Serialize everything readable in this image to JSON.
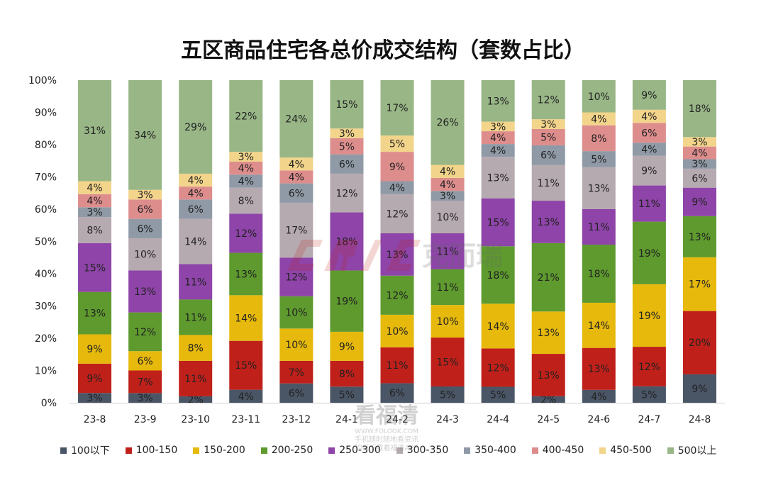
{
  "chart_data": {
    "type": "bar",
    "stacked": "percent",
    "title": "五区商品住宅各总价成交结构（套数占比）",
    "categories": [
      "23-8",
      "23-9",
      "23-10",
      "23-11",
      "23-12",
      "24-1",
      "24-2",
      "24-3",
      "24-4",
      "24-5",
      "24-6",
      "24-7",
      "24-8"
    ],
    "yticks": [
      "0%",
      "10%",
      "20%",
      "30%",
      "40%",
      "50%",
      "60%",
      "70%",
      "80%",
      "90%",
      "100%"
    ],
    "ylim": [
      0,
      100
    ],
    "legend_position": "bottom",
    "grid": false,
    "series": [
      {
        "name": "100以下",
        "color": "#4a5566",
        "values": [
          3,
          3,
          2,
          4,
          6,
          5,
          6,
          5,
          5,
          2,
          4,
          5,
          9
        ]
      },
      {
        "name": "100-150",
        "color": "#c0201a",
        "values": [
          9,
          7,
          11,
          15,
          7,
          8,
          11,
          15,
          12,
          13,
          13,
          12,
          20
        ]
      },
      {
        "name": "150-200",
        "color": "#e6b90c",
        "values": [
          9,
          6,
          8,
          14,
          10,
          9,
          10,
          10,
          14,
          13,
          14,
          19,
          17
        ]
      },
      {
        "name": "200-250",
        "color": "#5e9a2e",
        "values": [
          13,
          12,
          11,
          13,
          10,
          19,
          12,
          11,
          18,
          21,
          18,
          19,
          13
        ]
      },
      {
        "name": "250-300",
        "color": "#8e44a8",
        "values": [
          15,
          13,
          11,
          12,
          12,
          18,
          13,
          11,
          15,
          13,
          11,
          11,
          9
        ]
      },
      {
        "name": "300-350",
        "color": "#b6aab1",
        "values": [
          8,
          10,
          14,
          8,
          17,
          12,
          12,
          10,
          13,
          11,
          13,
          9,
          6
        ]
      },
      {
        "name": "350-400",
        "color": "#8f9aa6",
        "values": [
          3,
          6,
          6,
          4,
          6,
          6,
          4,
          3,
          4,
          6,
          5,
          4,
          3
        ]
      },
      {
        "name": "400-450",
        "color": "#de8d8d",
        "values": [
          4,
          6,
          4,
          4,
          4,
          5,
          9,
          4,
          4,
          5,
          8,
          6,
          4
        ]
      },
      {
        "name": "450-500",
        "color": "#f2d48a",
        "values": [
          4,
          3,
          4,
          3,
          4,
          3,
          5,
          4,
          3,
          3,
          4,
          4,
          3
        ]
      },
      {
        "name": "500以上",
        "color": "#98b686",
        "values": [
          31,
          34,
          29,
          22,
          24,
          15,
          17,
          26,
          13,
          12,
          10,
          9,
          18
        ]
      }
    ]
  },
  "watermark": {
    "brand_text": "克而瑞",
    "site_name": "看福清",
    "site_url": "WWW.FOLOOK.COM",
    "line1": "手机随时随地看资讯",
    "line2": "均可下载看福清APP"
  }
}
